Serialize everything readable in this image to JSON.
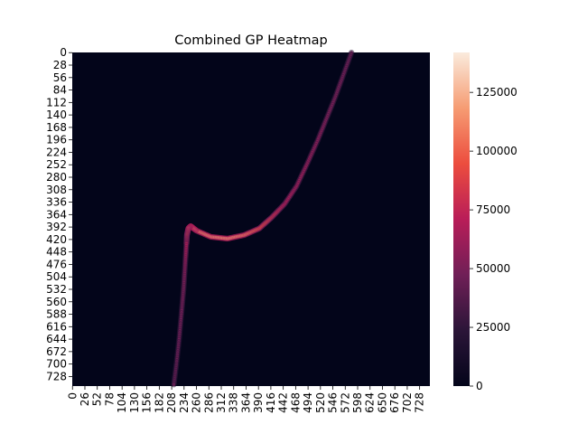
{
  "chart_data": {
    "type": "heatmap",
    "title": "Combined GP Heatmap",
    "xlabel": "",
    "ylabel": "",
    "shape": [
      750,
      750
    ],
    "x_ticks": [
      0,
      26,
      52,
      78,
      104,
      130,
      156,
      182,
      208,
      234,
      260,
      286,
      312,
      338,
      364,
      390,
      416,
      442,
      468,
      494,
      520,
      546,
      572,
      598,
      624,
      650,
      676,
      702,
      728
    ],
    "y_ticks": [
      0,
      28,
      56,
      84,
      112,
      140,
      168,
      196,
      224,
      252,
      280,
      308,
      336,
      364,
      392,
      420,
      448,
      476,
      504,
      532,
      560,
      588,
      616,
      644,
      672,
      700,
      728
    ],
    "colorbar": {
      "range": [
        0,
        142000
      ],
      "ticks": [
        0,
        25000,
        50000,
        75000,
        100000,
        125000
      ],
      "colormap": "rocket",
      "colors": [
        "#03051a",
        "#2b1538",
        "#701f57",
        "#b91d58",
        "#ec4d3e",
        "#f69c73",
        "#faebdd"
      ]
    },
    "background_value": 0,
    "curve": {
      "description_points_row_col": [
        [
          0,
          585
        ],
        [
          50,
          568
        ],
        [
          100,
          551
        ],
        [
          150,
          532
        ],
        [
          200,
          513
        ],
        [
          250,
          492
        ],
        [
          300,
          470
        ],
        [
          340,
          445
        ],
        [
          370,
          418
        ],
        [
          395,
          392
        ],
        [
          410,
          360
        ],
        [
          418,
          325
        ],
        [
          414,
          290
        ],
        [
          400,
          260
        ],
        [
          390,
          248
        ],
        [
          395,
          243
        ],
        [
          410,
          240
        ],
        [
          430,
          239
        ],
        [
          480,
          236
        ],
        [
          530,
          233
        ],
        [
          580,
          229
        ],
        [
          640,
          224
        ],
        [
          700,
          218
        ],
        [
          750,
          212
        ]
      ],
      "intensity": [
        45000,
        48000,
        50000,
        52000,
        55000,
        58000,
        62000,
        70000,
        82000,
        95000,
        110000,
        120000,
        118000,
        112000,
        120000,
        110000,
        90000,
        70000,
        55000,
        50000,
        48000,
        46000,
        44000,
        42000
      ]
    }
  }
}
